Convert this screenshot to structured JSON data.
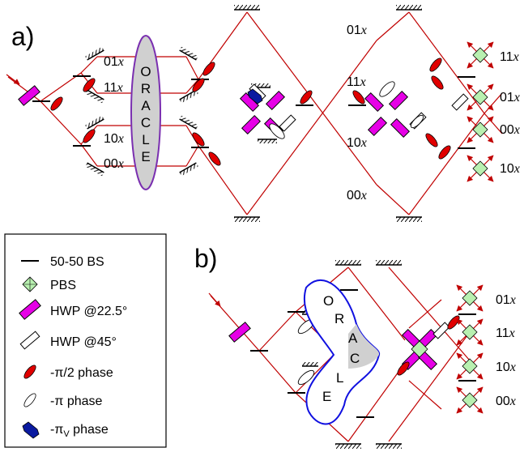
{
  "panels": {
    "a": "a)",
    "b": "b)"
  },
  "oracle_a": [
    "O",
    "R",
    "A",
    "C",
    "L",
    "E"
  ],
  "oracle_b": [
    "O",
    "R",
    "A",
    "C",
    "L",
    "E"
  ],
  "labels_a": {
    "in_01": "01",
    "in_11": "11",
    "in_10": "10",
    "in_00": "00",
    "mid_01": "01",
    "mid_11": "11",
    "mid_10": "10",
    "mid_00": "00",
    "out_11": "11",
    "out_01": "01",
    "out_00": "00",
    "out_10": "10",
    "suffix": "x"
  },
  "labels_b": {
    "out_01": "01",
    "out_11": "11",
    "out_10": "10",
    "out_00": "00",
    "suffix": "x"
  },
  "legend": {
    "bs": "50-50 BS",
    "pbs": "PBS",
    "hwp225": "HWP @22.5°",
    "hwp45": "HWP @45°",
    "phase_half": "-π/2 phase",
    "phase_pi": "-π phase",
    "phase_v_prefix": "-π",
    "phase_v_sub": "V",
    "phase_v_suffix": " phase"
  },
  "colors": {
    "beam": "#c00000",
    "hwp": "#e600e6",
    "phase": "#e00000",
    "phase_v": "#0a1aa0",
    "pbs": "#b8f0b0",
    "oracle_a": "#7a2fb0",
    "oracle_b": "#1010e0",
    "oracle_fill": "#d0d0d0"
  }
}
